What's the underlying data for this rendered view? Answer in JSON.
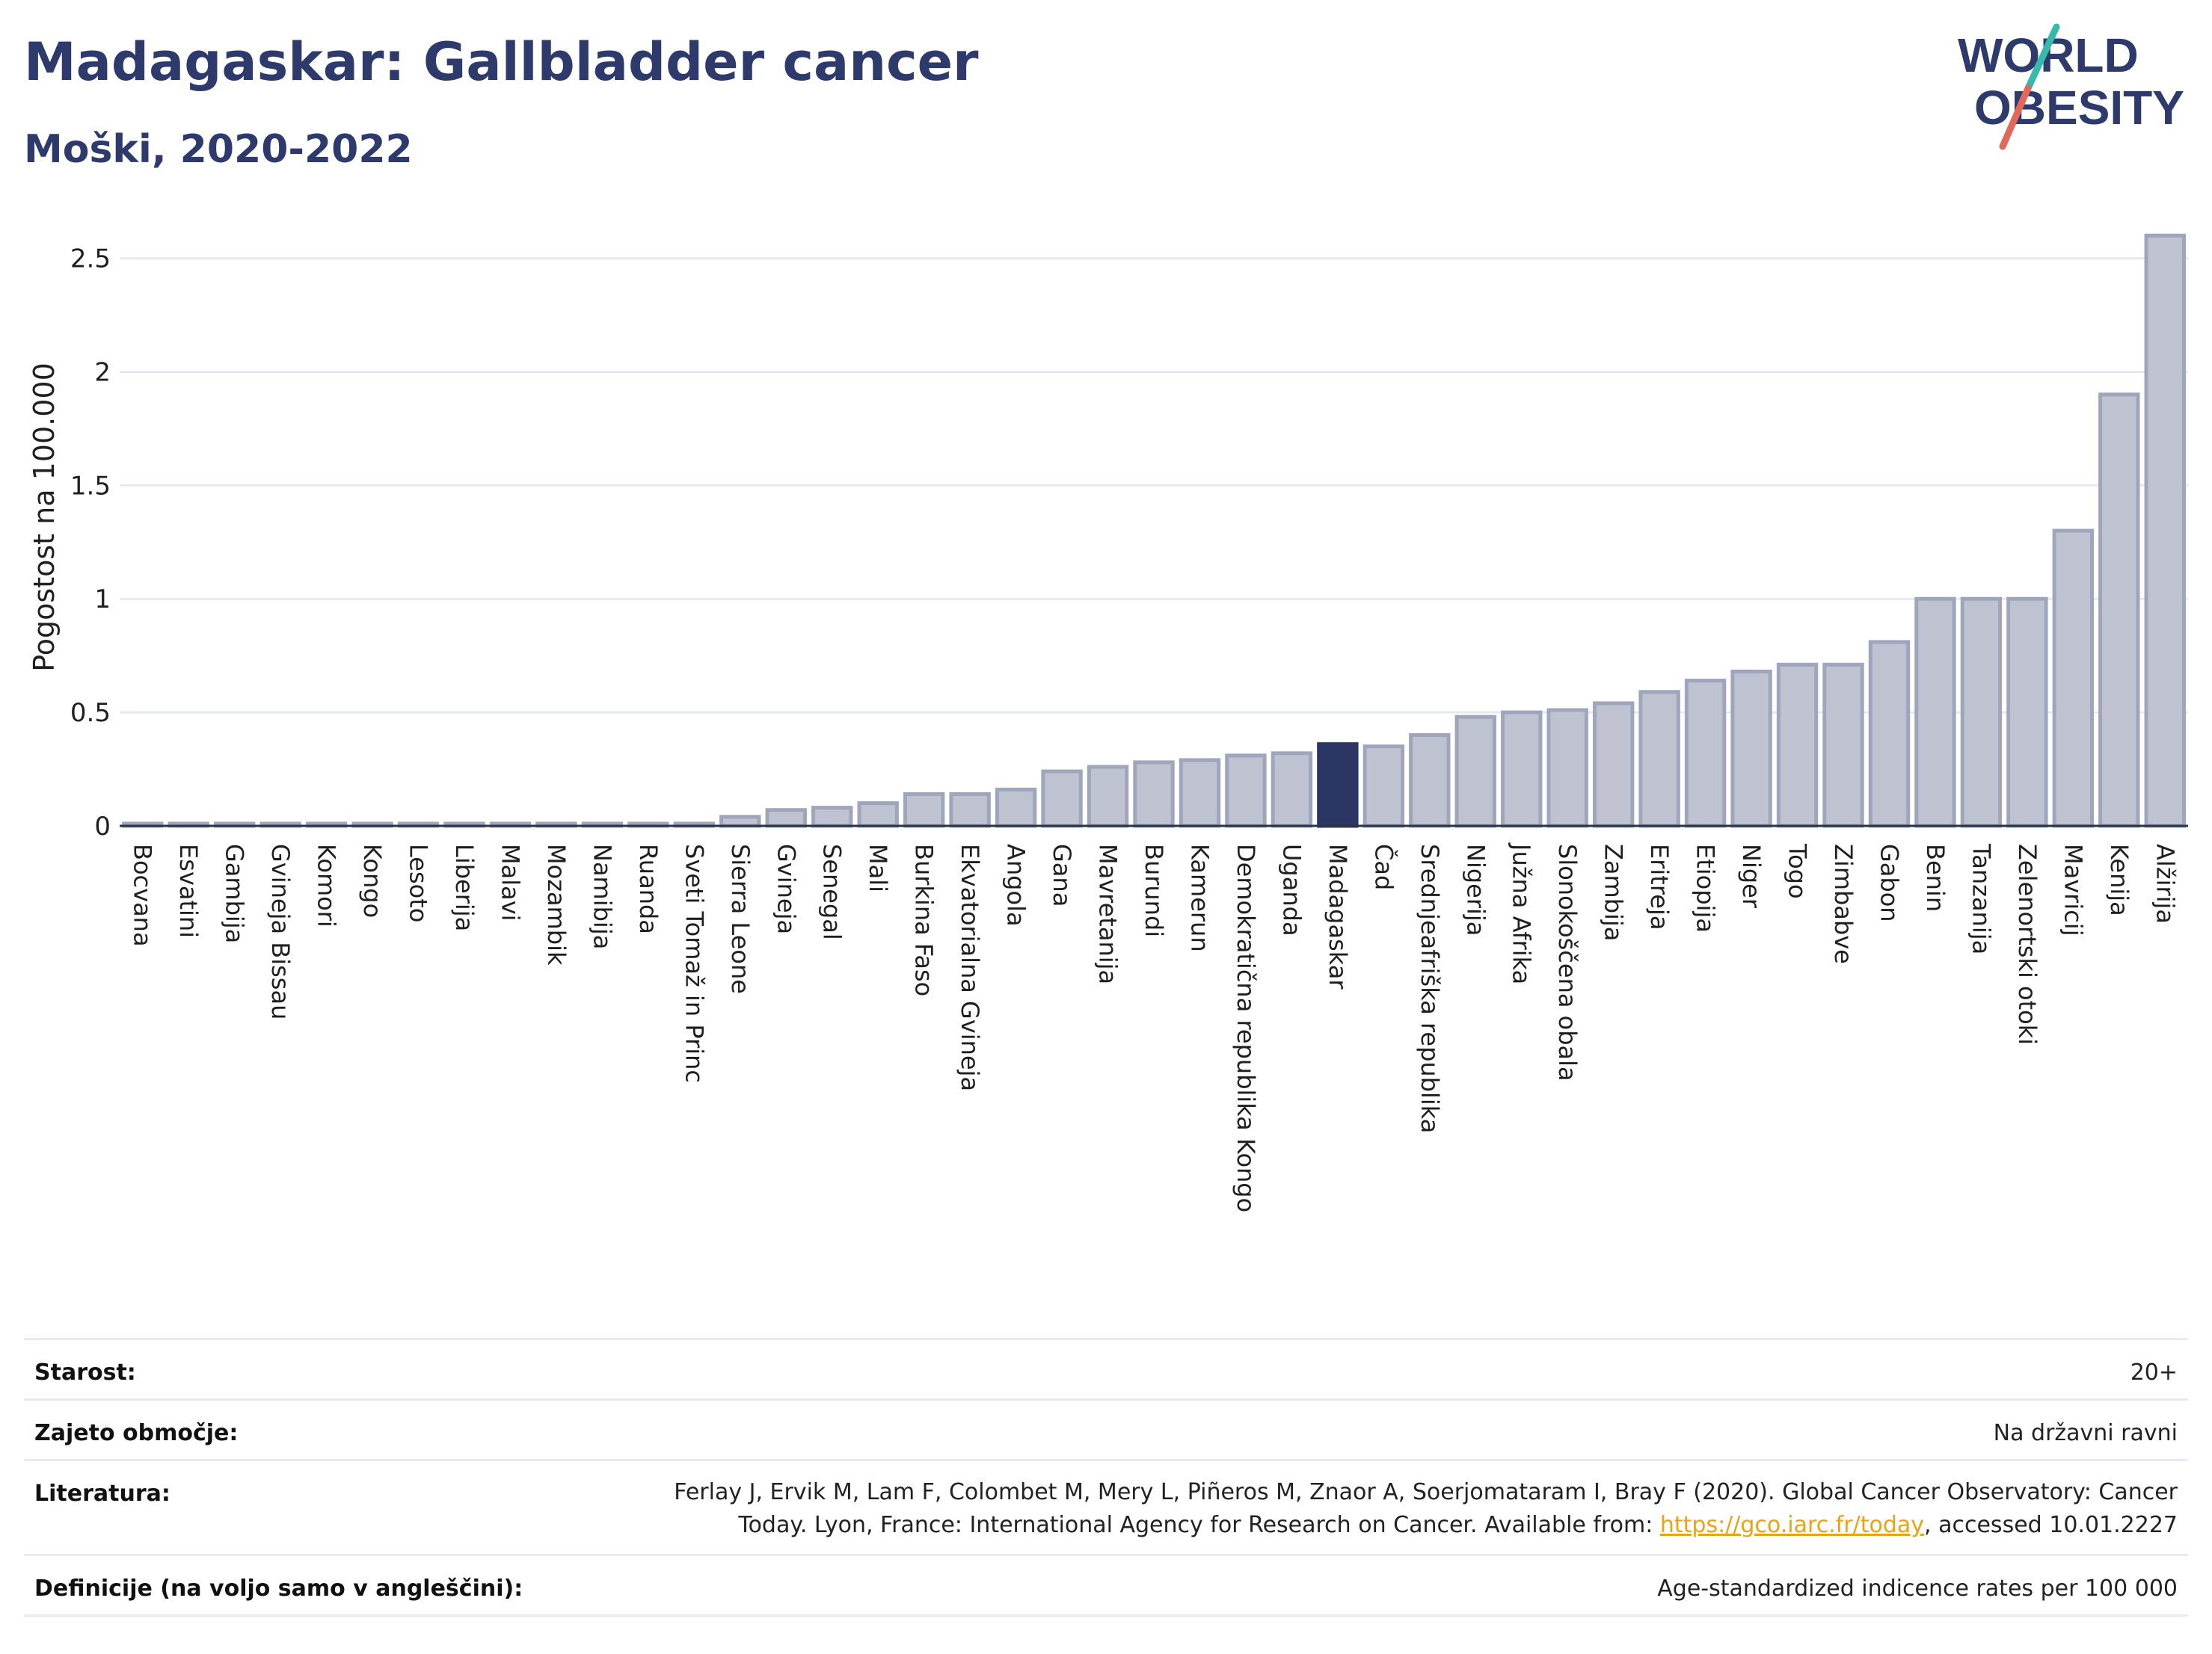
{
  "header": {
    "title": "Madagaskar: Gallbladder cancer",
    "subtitle": "Moški, 2020-2022"
  },
  "logo": {
    "line1": "WORLD",
    "line2": "OBESITY"
  },
  "colors": {
    "bar": "#bfc3d1",
    "bar_stroke": "#9fa5bb",
    "highlight": "#2b3665",
    "grid": "#e6e9ef",
    "axis_text": "#1f1f1f",
    "logo_navy": "#2d3a6b",
    "logo_teal": "#39b8ae",
    "logo_coral": "#e2685a"
  },
  "chart_data": {
    "type": "bar",
    "ylabel": "Pogostost na 100.000",
    "ylim": [
      0,
      2.65
    ],
    "yticks": [
      0,
      0.5,
      1,
      1.5,
      2,
      2.5
    ],
    "ytick_labels": [
      "0",
      "0.5",
      "1",
      "1.5",
      "2",
      "2.5"
    ],
    "grid": true,
    "highlight": "Madagaskar",
    "categories": [
      "Bocvana",
      "Esvatini",
      "Gambija",
      "Gvineja Bissau",
      "Komori",
      "Kongo",
      "Lesoto",
      "Liberija",
      "Malavi",
      "Mozambik",
      "Namibija",
      "Ruanda",
      "Sveti Tomaž in Princ",
      "Sierra Leone",
      "Gvineja",
      "Senegal",
      "Mali",
      "Burkina Faso",
      "Ekvatorialna Gvineja",
      "Angola",
      "Gana",
      "Mavretanija",
      "Burundi",
      "Kamerun",
      "Demokratična republika Kongo",
      "Uganda",
      "Madagaskar",
      "Čad",
      "Srednjeafriška republika",
      "Nigerija",
      "Južna Afrika",
      "Slonokoščena obala",
      "Zambija",
      "Eritreja",
      "Etiopija",
      "Niger",
      "Togo",
      "Zimbabve",
      "Gabon",
      "Benin",
      "Tanzanija",
      "Zelenortski otoki",
      "Mavricij",
      "Kenija",
      "Alžirija"
    ],
    "values": [
      0.01,
      0.01,
      0.01,
      0.01,
      0.01,
      0.01,
      0.01,
      0.01,
      0.01,
      0.01,
      0.01,
      0.01,
      0.01,
      0.04,
      0.07,
      0.08,
      0.1,
      0.14,
      0.14,
      0.16,
      0.24,
      0.26,
      0.28,
      0.29,
      0.31,
      0.32,
      0.36,
      0.35,
      0.4,
      0.48,
      0.5,
      0.51,
      0.54,
      0.59,
      0.64,
      0.68,
      0.71,
      0.71,
      0.81,
      1.0,
      1.0,
      1.0,
      1.3,
      1.9,
      2.6
    ]
  },
  "info": {
    "age_label": "Starost:",
    "age_value": "20+",
    "coverage_label": "Zajeto območje:",
    "coverage_value": "Na državni ravni",
    "reference_label": "Literatura:",
    "reference_line1": "Ferlay J, Ervik M, Lam F, Colombet M, Mery L, Piñeros M, Znaor A, Soerjomataram I, Bray F (2020). Global Cancer Observatory: Cancer",
    "reference_line2_pre": "Today. Lyon, France: International Agency for Research on Cancer. Available from: ",
    "reference_link": "https://gco.iarc.fr/today",
    "reference_line2_post": ", accessed 10.01.2227",
    "definitions_label": "Definicije (na voljo samo v angleščini):",
    "definitions_value": "Age-standardized indicence rates per 100 000"
  }
}
